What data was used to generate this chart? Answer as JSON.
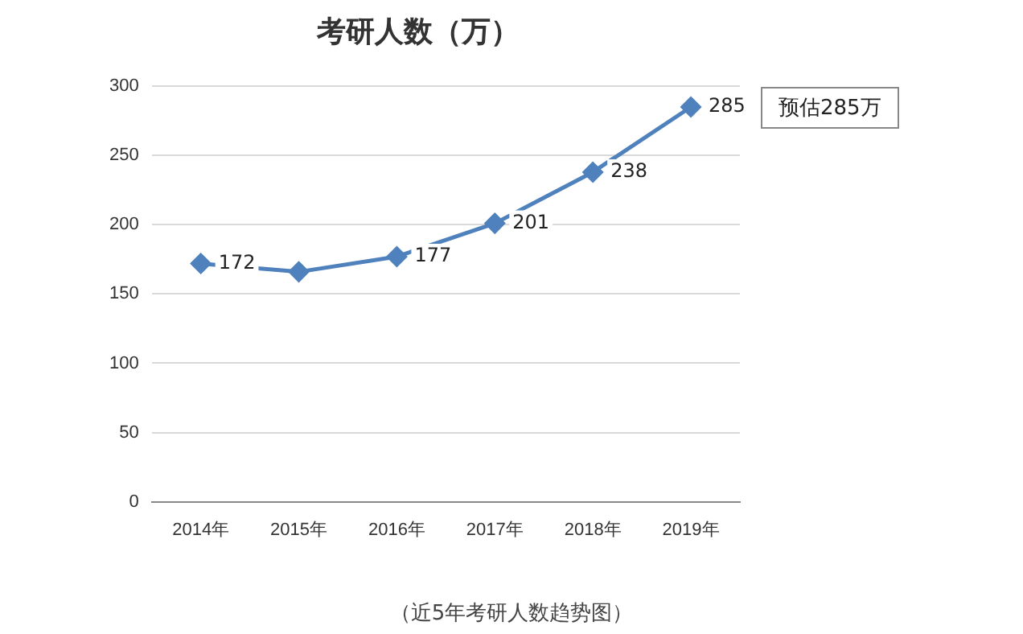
{
  "chart_data": {
    "type": "line",
    "title": "考研人数（万）",
    "categories": [
      "2014年",
      "2015年",
      "2016年",
      "2017年",
      "2018年",
      "2019年"
    ],
    "series": [
      {
        "color": "#4f81bd",
        "values": [
          172,
          166,
          177,
          201,
          238,
          285
        ],
        "value_labels": [
          "172",
          null,
          "177",
          "201",
          "238",
          "285"
        ]
      }
    ],
    "ylim": [
      0,
      300
    ],
    "yticks": [
      0,
      50,
      100,
      150,
      200,
      250,
      300
    ],
    "grid": "y",
    "legend": false,
    "marker": "diamond",
    "line_style": "solid",
    "annotations": [
      "预估285万",
      "（近5年考研人数趋势图）"
    ]
  }
}
